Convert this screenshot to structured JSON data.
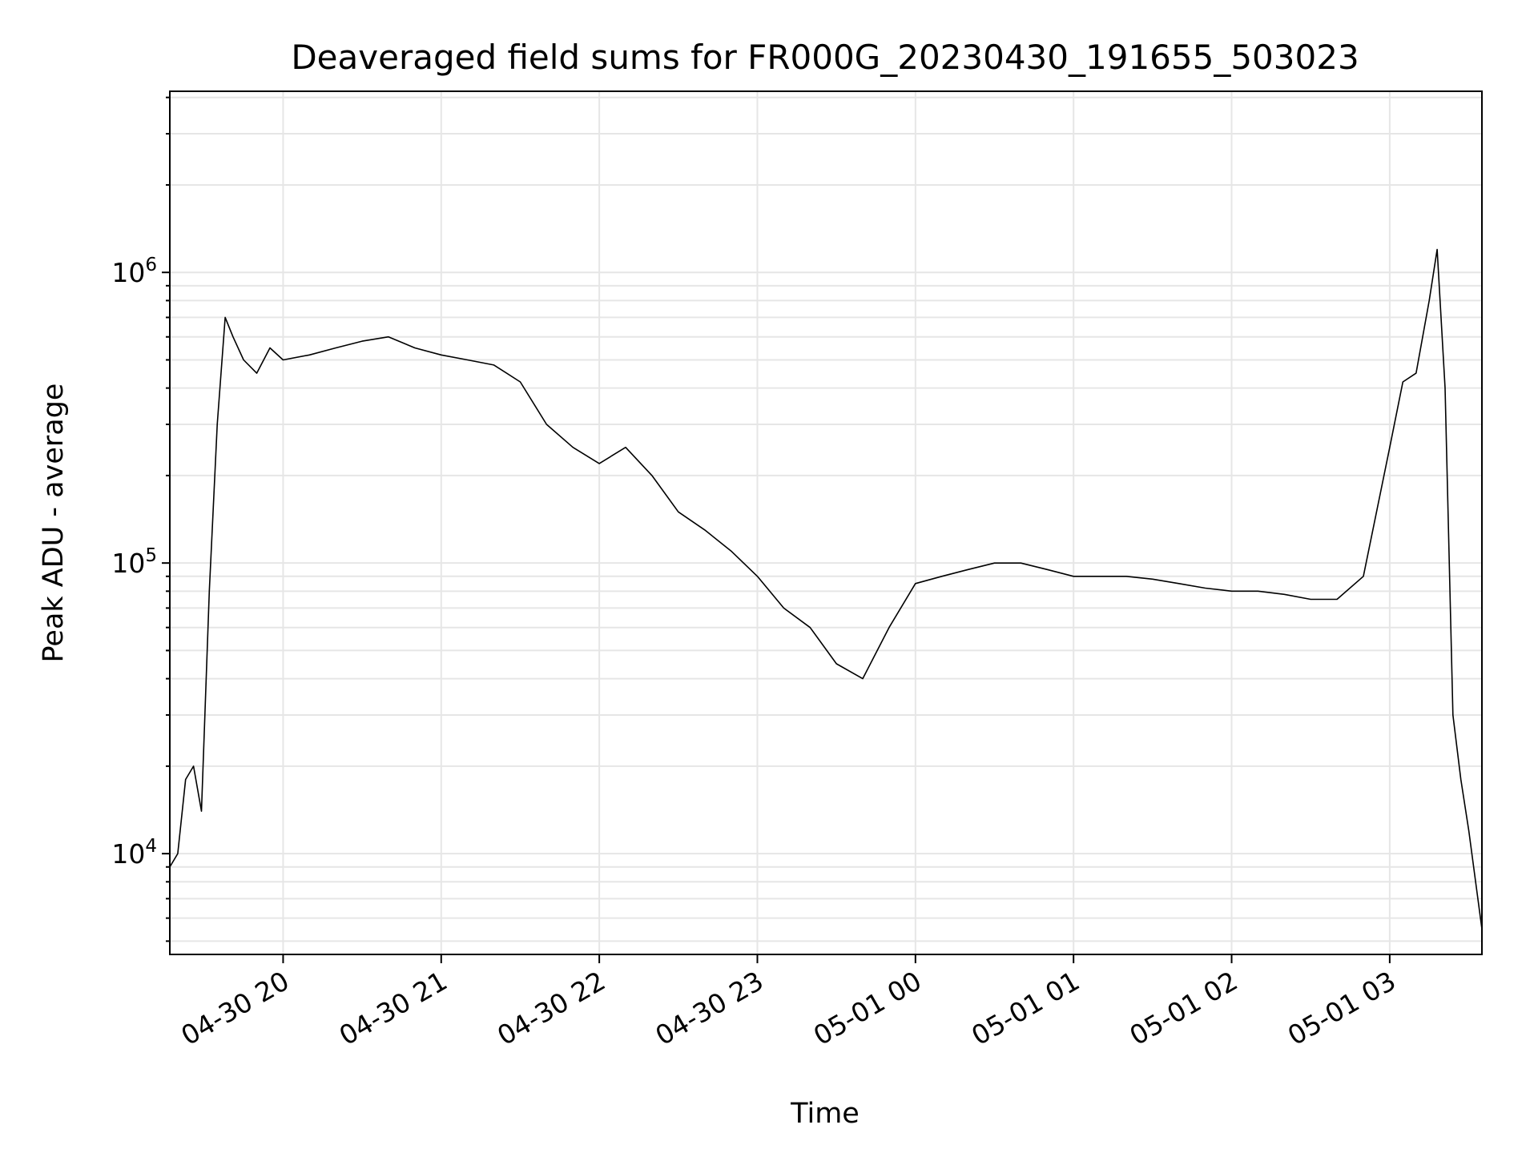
{
  "chart_data": {
    "type": "line",
    "title": "Deaveraged field sums for FR000G_20230430_191655_503023",
    "xlabel": "Time",
    "ylabel": "Peak ADU - average",
    "xlim": [
      "2023-04-30 19:17",
      "2023-05-01 03:35"
    ],
    "ylim": [
      4500,
      4200000
    ],
    "yscale": "log",
    "grid": true,
    "line_color": "#000000",
    "grid_color": "#e6e6e6",
    "x_ticks": [
      {
        "value": "2023-04-30 20:00",
        "label": "04-30 20"
      },
      {
        "value": "2023-04-30 21:00",
        "label": "04-30 21"
      },
      {
        "value": "2023-04-30 22:00",
        "label": "04-30 22"
      },
      {
        "value": "2023-04-30 23:00",
        "label": "04-30 23"
      },
      {
        "value": "2023-05-01 00:00",
        "label": "05-01 00"
      },
      {
        "value": "2023-05-01 01:00",
        "label": "05-01 01"
      },
      {
        "value": "2023-05-01 02:00",
        "label": "05-01 02"
      },
      {
        "value": "2023-05-01 03:00",
        "label": "05-01 03"
      }
    ],
    "y_ticks": [
      {
        "value": 10000,
        "base": "10",
        "exp": "4"
      },
      {
        "value": 100000,
        "base": "10",
        "exp": "5"
      },
      {
        "value": 1000000,
        "base": "10",
        "exp": "6"
      }
    ],
    "x": [
      "2023-04-30 19:17",
      "2023-04-30 19:20",
      "2023-04-30 19:23",
      "2023-04-30 19:26",
      "2023-04-30 19:29",
      "2023-04-30 19:32",
      "2023-04-30 19:35",
      "2023-04-30 19:38",
      "2023-04-30 19:41",
      "2023-04-30 19:45",
      "2023-04-30 19:50",
      "2023-04-30 19:55",
      "2023-04-30 20:00",
      "2023-04-30 20:10",
      "2023-04-30 20:20",
      "2023-04-30 20:30",
      "2023-04-30 20:40",
      "2023-04-30 20:50",
      "2023-04-30 21:00",
      "2023-04-30 21:10",
      "2023-04-30 21:20",
      "2023-04-30 21:30",
      "2023-04-30 21:40",
      "2023-04-30 21:50",
      "2023-04-30 22:00",
      "2023-04-30 22:10",
      "2023-04-30 22:20",
      "2023-04-30 22:30",
      "2023-04-30 22:40",
      "2023-04-30 22:50",
      "2023-04-30 23:00",
      "2023-04-30 23:10",
      "2023-04-30 23:20",
      "2023-04-30 23:30",
      "2023-04-30 23:40",
      "2023-04-30 23:50",
      "2023-05-01 00:00",
      "2023-05-01 00:10",
      "2023-05-01 00:20",
      "2023-05-01 00:30",
      "2023-05-01 00:40",
      "2023-05-01 00:50",
      "2023-05-01 01:00",
      "2023-05-01 01:10",
      "2023-05-01 01:20",
      "2023-05-01 01:30",
      "2023-05-01 01:40",
      "2023-05-01 01:50",
      "2023-05-01 02:00",
      "2023-05-01 02:10",
      "2023-05-01 02:20",
      "2023-05-01 02:30",
      "2023-05-01 02:40",
      "2023-05-01 02:50",
      "2023-05-01 03:00",
      "2023-05-01 03:05",
      "2023-05-01 03:10",
      "2023-05-01 03:15",
      "2023-05-01 03:18",
      "2023-05-01 03:21",
      "2023-05-01 03:24",
      "2023-05-01 03:27",
      "2023-05-01 03:30",
      "2023-05-01 03:35"
    ],
    "y": [
      9000,
      10000,
      18000,
      20000,
      14000,
      80000,
      300000,
      700000,
      600000,
      500000,
      450000,
      550000,
      500000,
      520000,
      550000,
      580000,
      600000,
      550000,
      520000,
      500000,
      480000,
      420000,
      300000,
      250000,
      220000,
      250000,
      200000,
      150000,
      130000,
      110000,
      90000,
      70000,
      60000,
      45000,
      40000,
      60000,
      85000,
      90000,
      95000,
      100000,
      100000,
      95000,
      90000,
      90000,
      90000,
      88000,
      85000,
      82000,
      80000,
      80000,
      78000,
      75000,
      75000,
      90000,
      250000,
      420000,
      450000,
      800000,
      1200000,
      400000,
      30000,
      18000,
      12000,
      5500
    ]
  }
}
